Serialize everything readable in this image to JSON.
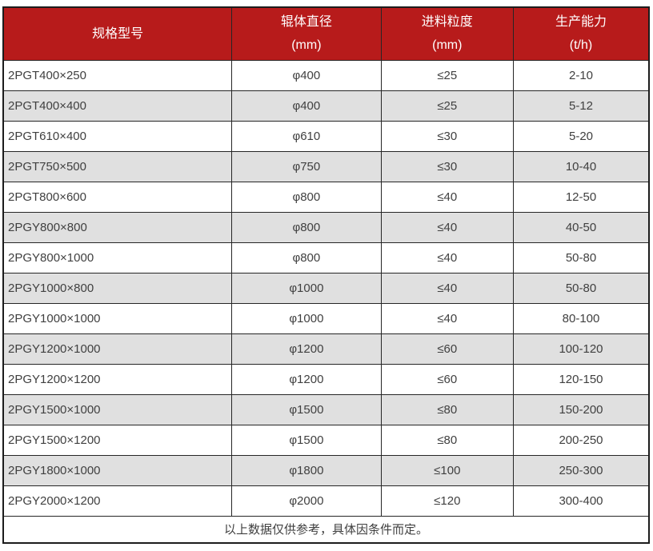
{
  "chart_data": {
    "type": "table",
    "columns": [
      {
        "label": "规格型号",
        "unit": ""
      },
      {
        "label": "辊体直径",
        "unit": "(mm)"
      },
      {
        "label": "进料粒度",
        "unit": "(mm)"
      },
      {
        "label": "生产能力",
        "unit": "(t/h)"
      }
    ],
    "rows": [
      [
        "2PGT400×250",
        "φ400",
        "≤25",
        "2-10"
      ],
      [
        "2PGT400×400",
        "φ400",
        "≤25",
        "5-12"
      ],
      [
        "2PGT610×400",
        "φ610",
        "≤30",
        "5-20"
      ],
      [
        "2PGT750×500",
        "φ750",
        "≤30",
        "10-40"
      ],
      [
        "2PGT800×600",
        "φ800",
        "≤40",
        "12-50"
      ],
      [
        "2PGY800×800",
        "φ800",
        "≤40",
        "40-50"
      ],
      [
        "2PGY800×1000",
        "φ800",
        "≤40",
        "50-80"
      ],
      [
        "2PGY1000×800",
        "φ1000",
        "≤40",
        "50-80"
      ],
      [
        "2PGY1000×1000",
        "φ1000",
        "≤40",
        "80-100"
      ],
      [
        "2PGY1200×1000",
        "φ1200",
        "≤60",
        "100-120"
      ],
      [
        "2PGY1200×1200",
        "φ1200",
        "≤60",
        "120-150"
      ],
      [
        "2PGY1500×1000",
        "φ1500",
        "≤80",
        "150-200"
      ],
      [
        "2PGY1500×1200",
        "φ1500",
        "≤80",
        "200-250"
      ],
      [
        "2PGY1800×1000",
        "φ1800",
        "≤100",
        "250-300"
      ],
      [
        "2PGY2000×1200",
        "φ2000",
        "≤120",
        "300-400"
      ]
    ],
    "footnote": "以上数据仅供参考，具体因条件而定。"
  },
  "colors": {
    "header_bg": "#b71b1b",
    "header_text": "#ffffff",
    "row_bg": "#ffffff",
    "row_alt_bg": "#e0e0e0",
    "body_text": "#404040",
    "inner_border": "#262626",
    "outer_border": "#1c1c1c"
  }
}
